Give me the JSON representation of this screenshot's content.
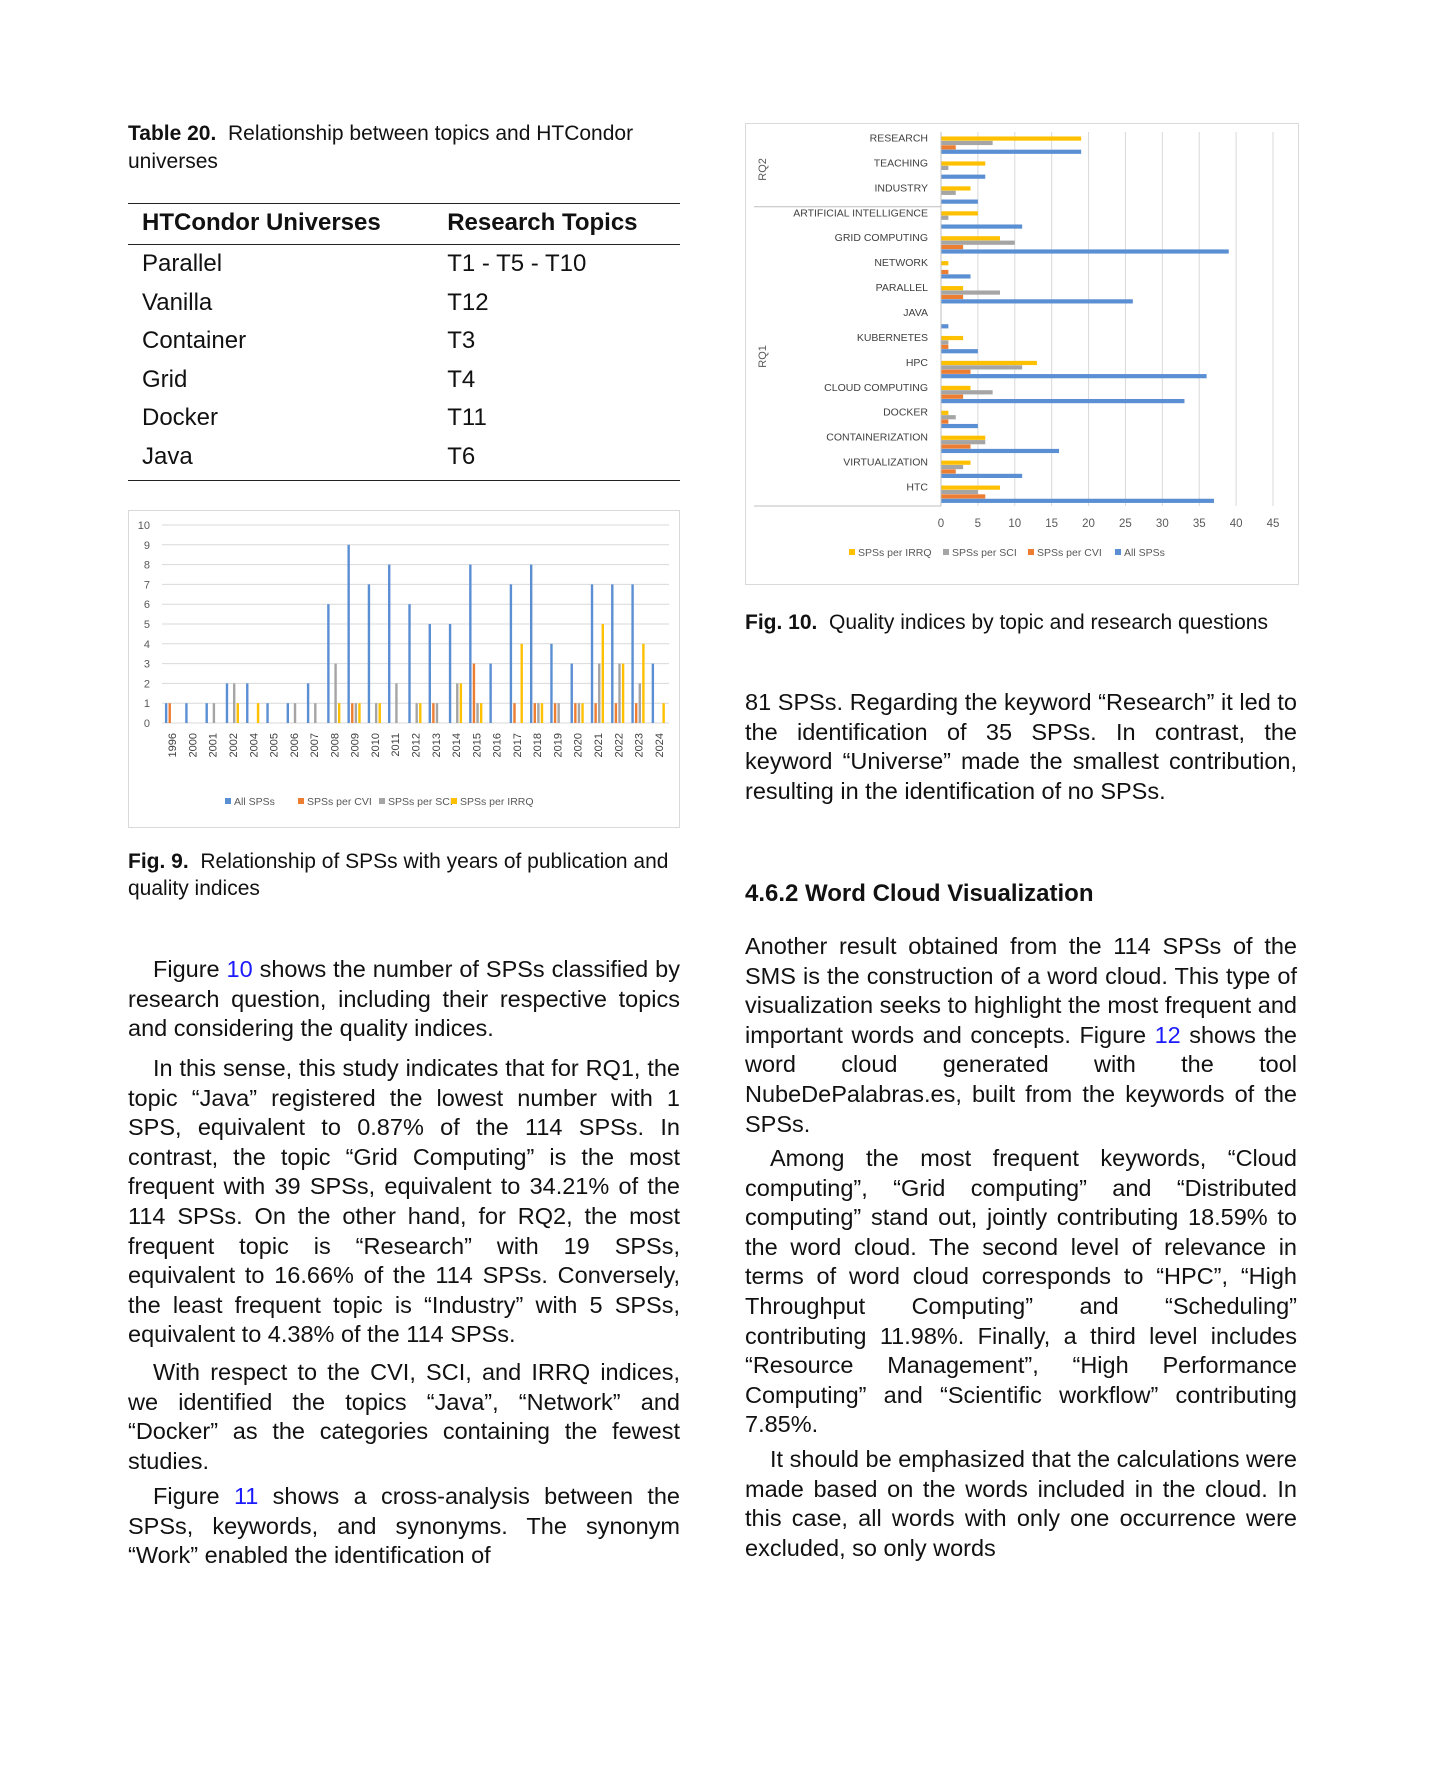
{
  "table20": {
    "caption_label": "Table 20.",
    "caption_text": "Relationship between topics and HTCondor universes",
    "header": [
      "HTCondor Universes",
      "Research Topics"
    ],
    "rows": [
      [
        "Parallel",
        "T1 - T5 - T10"
      ],
      [
        "Vanilla",
        "T12"
      ],
      [
        "Container",
        "T3"
      ],
      [
        "Grid",
        "T4"
      ],
      [
        "Docker",
        "T11"
      ],
      [
        "Java",
        "T6"
      ]
    ]
  },
  "fig9": {
    "caption_label": "Fig. 9.",
    "caption_text": "Relationship of SPSs with years of publication and quality indices"
  },
  "fig10": {
    "caption_label": "Fig. 10.",
    "caption_text": "Quality indices by topic and research questions"
  },
  "left_text": {
    "p1_a": "Figure ",
    "p1_ref": "10",
    "p1_b": " shows the number of SPSs classified by research question, including their respective topics and considering the quality indices.",
    "p2": "In this sense, this study indicates that for RQ1, the topic “Java” registered the lowest number with 1 SPS, equivalent to 0.87% of the 114 SPSs. In contrast, the topic “Grid Computing” is the most frequent with 39 SPSs, equivalent to 34.21% of the 114 SPSs. On the other hand, for RQ2, the most frequent topic is “Research” with 19 SPSs, equivalent to 16.66% of the 114 SPSs. Conversely, the least frequent topic is “Industry” with 5 SPSs, equivalent to 4.38% of the 114 SPSs.",
    "p3": "With respect to the CVI, SCI, and IRRQ indices, we identified the topics “Java”, “Network” and “Docker” as the categories containing the fewest studies.",
    "p4_a": "Figure ",
    "p4_ref": "11",
    "p4_b": " shows a cross-analysis between the SPSs, keywords, and synonyms. The synonym “Work” enabled the identification of"
  },
  "right_text": {
    "p1": "81 SPSs. Regarding the keyword “Research” it led to the identification of 35 SPSs. In contrast, the keyword “Universe” made the smallest contribution, resulting in the identification of no SPSs.",
    "section_title": "4.6.2 Word Cloud Visualization",
    "p2_a": "Another result obtained from the 114 SPSs of the SMS is the construction of a word cloud. This type of visualization seeks to highlight the most frequent and important words and concepts. Figure ",
    "p2_ref": "12",
    "p2_b": " shows the word cloud generated with the tool NubeDePalabras.es, built from the keywords of the SPSs.",
    "p3": "Among the most frequent keywords, “Cloud computing”, “Grid computing” and “Distributed computing” stand out, jointly contributing 18.59% to the word cloud. The second level of relevance in terms of word cloud corresponds to “HPC”, “High Throughput Computing” and “Scheduling” contributing 11.98%. Finally, a third level includes “Resource Management”, “High Performance Computing” and “Scientific workflow” contributing 7.85%.",
    "p4": "It should be emphasized that the calculations were made based on the words included in the cloud. In this case, all words with only one occurrence were excluded, so only words"
  },
  "chart_data": [
    {
      "type": "bar",
      "orientation": "vertical",
      "categories": [
        "1996",
        "2000",
        "2001",
        "2002",
        "2004",
        "2005",
        "2006",
        "2007",
        "2008",
        "2009",
        "2010",
        "2011",
        "2012",
        "2013",
        "2014",
        "2015",
        "2016",
        "2017",
        "2018",
        "2019",
        "2020",
        "2021",
        "2022",
        "2023",
        "2024"
      ],
      "series": [
        {
          "name": "All SPSs",
          "color": "#5B8FD3",
          "values": [
            1,
            1,
            1,
            2,
            2,
            1,
            1,
            2,
            6,
            9,
            7,
            8,
            6,
            5,
            5,
            8,
            3,
            7,
            8,
            4,
            3,
            7,
            7,
            7,
            3
          ]
        },
        {
          "name": "SPSs per CVI",
          "color": "#ED7D31",
          "values": [
            1,
            0,
            0,
            0,
            0,
            0,
            0,
            0,
            0,
            1,
            0,
            0,
            0,
            1,
            0,
            3,
            0,
            1,
            1,
            1,
            1,
            1,
            1,
            1,
            0
          ]
        },
        {
          "name": "SPSs per SCI",
          "color": "#A5A5A5",
          "values": [
            0,
            0,
            1,
            2,
            0,
            0,
            1,
            1,
            3,
            1,
            1,
            2,
            1,
            1,
            2,
            1,
            0,
            0,
            1,
            1,
            1,
            3,
            3,
            2,
            0
          ]
        },
        {
          "name": "SPSs per IRRQ",
          "color": "#FFC000",
          "values": [
            0,
            0,
            0,
            1,
            1,
            0,
            0,
            0,
            1,
            1,
            1,
            0,
            1,
            0,
            2,
            1,
            0,
            4,
            1,
            0,
            1,
            5,
            3,
            4,
            1
          ]
        }
      ],
      "ylim": [
        0,
        10
      ],
      "yticks": [
        0,
        1,
        2,
        3,
        4,
        5,
        6,
        7,
        8,
        9,
        10
      ],
      "grid": true,
      "legend": "bottom"
    },
    {
      "type": "bar",
      "orientation": "horizontal",
      "groups": [
        {
          "label": "RQ2",
          "categories": [
            "RESEARCH",
            "TEACHING",
            "INDUSTRY"
          ]
        },
        {
          "label": "RQ1",
          "categories": [
            "ARTIFICIAL INTELLIGENCE",
            "GRID COMPUTING",
            "NETWORK",
            "PARALLEL",
            "JAVA",
            "KUBERNETES",
            "HPC",
            "CLOUD COMPUTING",
            "DOCKER",
            "CONTAINERIZATION",
            "VIRTUALIZATION",
            "HTC"
          ]
        }
      ],
      "categories": [
        "RESEARCH",
        "TEACHING",
        "INDUSTRY",
        "ARTIFICIAL INTELLIGENCE",
        "GRID COMPUTING",
        "NETWORK",
        "PARALLEL",
        "JAVA",
        "KUBERNETES",
        "HPC",
        "CLOUD COMPUTING",
        "DOCKER",
        "CONTAINERIZATION",
        "VIRTUALIZATION",
        "HTC"
      ],
      "series": [
        {
          "name": "SPSs per IRRQ",
          "color": "#FFC000",
          "values": [
            19,
            6,
            4,
            5,
            8,
            1,
            3,
            0,
            3,
            13,
            4,
            1,
            6,
            4,
            8
          ]
        },
        {
          "name": "SPSs per SCI",
          "color": "#A5A5A5",
          "values": [
            7,
            1,
            2,
            1,
            10,
            0,
            8,
            0,
            1,
            11,
            7,
            2,
            6,
            3,
            5
          ]
        },
        {
          "name": "SPSs per CVI",
          "color": "#ED7D31",
          "values": [
            2,
            0,
            0,
            0,
            3,
            1,
            3,
            0,
            1,
            4,
            3,
            1,
            4,
            2,
            6
          ]
        },
        {
          "name": "All SPSs",
          "color": "#5B8FD3",
          "values": [
            19,
            6,
            5,
            11,
            39,
            4,
            26,
            1,
            5,
            36,
            33,
            5,
            16,
            11,
            37
          ]
        }
      ],
      "xlim": [
        0,
        45
      ],
      "xticks": [
        0,
        5,
        10,
        15,
        20,
        25,
        30,
        35,
        40,
        45
      ],
      "grid": true,
      "legend": "bottom"
    }
  ]
}
